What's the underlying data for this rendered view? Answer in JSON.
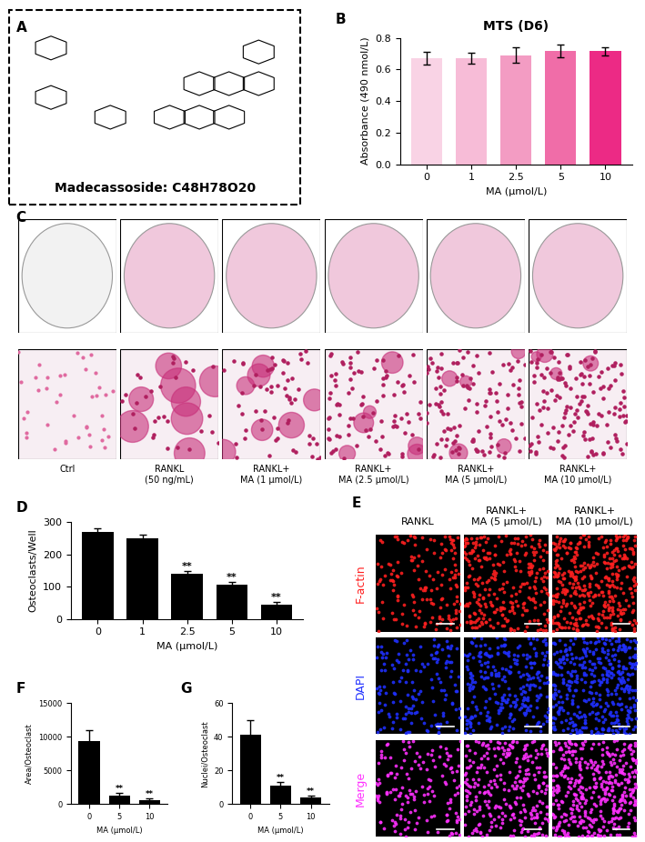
{
  "chart_data": [
    {
      "panel": "B",
      "type": "bar",
      "title": "MTS (D6)",
      "categories": [
        "0",
        "1",
        "2.5",
        "5",
        "10"
      ],
      "values": [
        0.67,
        0.67,
        0.69,
        0.72,
        0.715
      ],
      "errors": [
        0.04,
        0.035,
        0.05,
        0.04,
        0.025
      ],
      "colors": [
        "#f9d3e5",
        "#f7bcd7",
        "#f39cc3",
        "#f06da8",
        "#ec2a85"
      ],
      "x_label": "MA (μmol/L)",
      "y_label": "Absorbance (490 nmol/L)",
      "ylim": [
        0,
        0.8
      ],
      "yticks": [
        0.0,
        0.2,
        0.4,
        0.6,
        0.8
      ]
    },
    {
      "panel": "D",
      "type": "bar",
      "categories": [
        "0",
        "1",
        "2.5",
        "5",
        "10"
      ],
      "values": [
        270,
        250,
        140,
        107,
        43
      ],
      "errors": [
        12,
        12,
        8,
        7,
        9
      ],
      "significance": [
        null,
        null,
        "**",
        "**",
        "**"
      ],
      "color": "#000000",
      "x_label": "MA (μmol/L)",
      "y_label": "Osteoclasts/Well",
      "ylim": [
        0,
        300
      ],
      "yticks": [
        0,
        100,
        200,
        300
      ]
    },
    {
      "panel": "F",
      "type": "bar",
      "categories": [
        "0",
        "5",
        "10"
      ],
      "values": [
        9300,
        1200,
        650
      ],
      "errors": [
        1700,
        400,
        200
      ],
      "significance": [
        null,
        "**",
        "**"
      ],
      "color": "#000000",
      "x_label": "MA (μmol/L)",
      "y_label": "Area/Osteoclast",
      "ylim": [
        0,
        15000
      ],
      "yticks": [
        0,
        5000,
        10000,
        15000
      ]
    },
    {
      "panel": "G",
      "type": "bar",
      "categories": [
        "0",
        "5",
        "10"
      ],
      "values": [
        41,
        11,
        4
      ],
      "errors": [
        9,
        2,
        1
      ],
      "significance": [
        null,
        "**",
        "**"
      ],
      "color": "#000000",
      "x_label": "MA (μmol/L)",
      "y_label": "Nuclei/Osteoclast",
      "ylim": [
        0,
        60
      ],
      "yticks": [
        0,
        20,
        40,
        60
      ]
    }
  ],
  "images": {
    "A": {
      "panel": "A",
      "caption": "Madecassoside: C48H78O20"
    },
    "C": {
      "panel": "C",
      "labels": [
        "Ctrl",
        "RANKL\n(50 ng/mL)",
        "RANKL+\nMA (1 μmol/L)",
        "RANKL+\nMA (2.5 μmol/L)",
        "RANKL+\nMA (5 μmol/L)",
        "RANKL+\nMA (10 μmol/L)"
      ]
    },
    "E": {
      "panel": "E",
      "columns": [
        "RANKL",
        "RANKL+\nMA (5 μmol/L)",
        "RANKL+\nMA (10 μmol/L)"
      ],
      "rows": [
        "F-actin",
        "DAPI",
        "Merge"
      ],
      "row_colors": [
        "#ff2020",
        "#2030ff",
        "#ff30ff"
      ]
    }
  }
}
